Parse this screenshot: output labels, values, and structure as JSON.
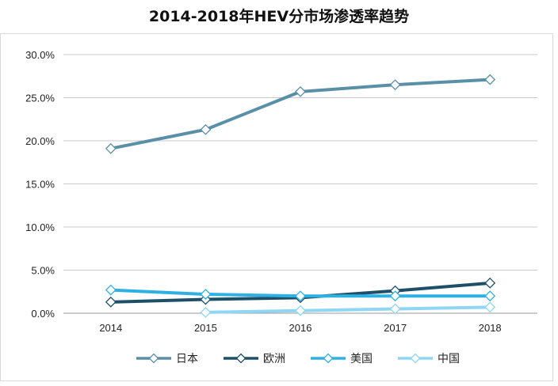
{
  "chart_data": {
    "type": "line",
    "title": "2014-2018年HEV分市场渗透率趋势",
    "xlabel": "",
    "ylabel": "",
    "categories": [
      "2014",
      "2015",
      "2016",
      "2017",
      "2018"
    ],
    "ylim": [
      0,
      30
    ],
    "yticks": [
      "0.0%",
      "5.0%",
      "10.0%",
      "15.0%",
      "20.0%",
      "25.0%",
      "30.0%"
    ],
    "grid": true,
    "legend_position": "bottom",
    "series": [
      {
        "name": "日本",
        "color": "#5a8fa8",
        "values": [
          19.1,
          21.3,
          25.7,
          26.5,
          27.1
        ]
      },
      {
        "name": "欧洲",
        "color": "#1d5068",
        "values": [
          1.3,
          1.6,
          1.8,
          2.6,
          3.5
        ]
      },
      {
        "name": "美国",
        "color": "#2fb0e3",
        "values": [
          2.7,
          2.2,
          2.0,
          2.0,
          2.0
        ]
      },
      {
        "name": "中国",
        "color": "#8fd6f4",
        "values": [
          null,
          0.1,
          0.3,
          0.5,
          0.7
        ]
      }
    ]
  }
}
